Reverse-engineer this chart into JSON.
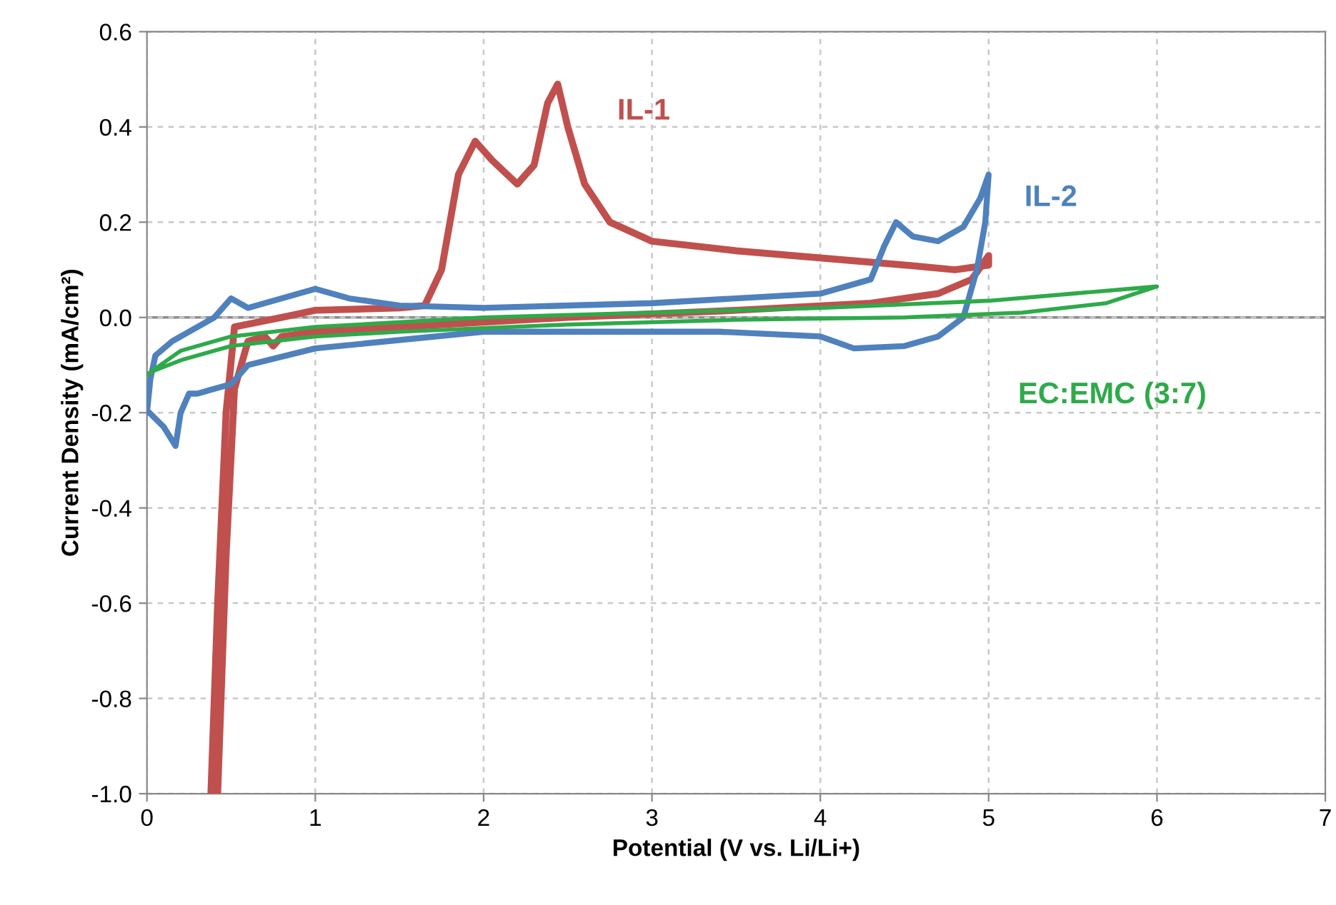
{
  "chart_data": {
    "type": "line",
    "xlabel": "Potential (V vs. Li/Li+)",
    "ylabel": "Current Density (mA/cm²)",
    "xlim": [
      0,
      7
    ],
    "xticks": [
      0,
      1,
      2,
      3,
      4,
      5,
      6,
      7
    ],
    "ylim": [
      -1.0,
      0.6
    ],
    "yticks": [
      {
        "value": -1.0,
        "label": "-1.0"
      },
      {
        "value": -0.8,
        "label": "-0.8"
      },
      {
        "value": -0.6,
        "label": "-0.6"
      },
      {
        "value": -0.4,
        "label": "-0.4"
      },
      {
        "value": -0.2,
        "label": "-0.2"
      },
      {
        "value": 0.0,
        "label": "0.0"
      },
      0.2,
      0.4,
      0.6
    ],
    "grid": true,
    "line_style": "solid",
    "marker": "none",
    "legend": false,
    "ref_lines": [
      {
        "axis": "y",
        "value": 0,
        "color": "#8c8c8c",
        "line_style": "solid"
      }
    ],
    "series": [
      {
        "name": "IL-1",
        "color": "#c0504d",
        "x": [
          0.38,
          0.42,
          0.47,
          0.52,
          0.8,
          1.0,
          1.5,
          1.65,
          1.75,
          1.85,
          1.95,
          2.05,
          2.2,
          2.3,
          2.38,
          2.44,
          2.5,
          2.6,
          2.75,
          3.0,
          3.5,
          4.0,
          4.5,
          4.8,
          5.0,
          5.0,
          4.9,
          4.7,
          4.3,
          3.5,
          2.5,
          1.5,
          1.0,
          0.8,
          0.75,
          0.7,
          0.6,
          0.52,
          0.47,
          0.42
        ],
        "values": [
          -1.0,
          -0.6,
          -0.2,
          -0.02,
          0.0,
          0.015,
          0.02,
          0.025,
          0.1,
          0.3,
          0.37,
          0.33,
          0.28,
          0.32,
          0.45,
          0.49,
          0.4,
          0.28,
          0.2,
          0.16,
          0.14,
          0.125,
          0.11,
          0.1,
          0.11,
          0.13,
          0.08,
          0.05,
          0.03,
          0.015,
          0.0,
          -0.02,
          -0.03,
          -0.04,
          -0.06,
          -0.04,
          -0.05,
          -0.15,
          -0.5,
          -1.0
        ]
      },
      {
        "name": "IL-2",
        "color": "#4f81bd",
        "x": [
          0.0,
          0.02,
          0.05,
          0.15,
          0.3,
          0.4,
          0.5,
          0.6,
          0.7,
          0.85,
          1.0,
          1.2,
          1.5,
          2.0,
          3.0,
          4.0,
          4.3,
          4.38,
          4.45,
          4.55,
          4.7,
          4.85,
          4.95,
          5.0,
          4.98,
          4.93,
          4.85,
          4.7,
          4.5,
          4.2,
          4.0,
          3.4,
          2.0,
          1.0,
          0.6,
          0.5,
          0.4,
          0.3,
          0.25,
          0.2,
          0.17,
          0.1,
          0.0
        ],
        "values": [
          -0.2,
          -0.13,
          -0.08,
          -0.05,
          -0.02,
          0.0,
          0.04,
          0.02,
          0.03,
          0.045,
          0.06,
          0.04,
          0.025,
          0.02,
          0.03,
          0.05,
          0.08,
          0.15,
          0.2,
          0.17,
          0.16,
          0.19,
          0.25,
          0.3,
          0.2,
          0.1,
          0.0,
          -0.04,
          -0.06,
          -0.065,
          -0.04,
          -0.03,
          -0.03,
          -0.065,
          -0.1,
          -0.14,
          -0.15,
          -0.16,
          -0.16,
          -0.2,
          -0.27,
          -0.23,
          -0.195
        ]
      },
      {
        "name": "EC:EMC (3:7)",
        "color": "#2eaa4a",
        "x": [
          0.0,
          0.2,
          0.5,
          1.0,
          2.0,
          3.0,
          4.0,
          5.0,
          5.5,
          6.0,
          5.7,
          5.2,
          4.5,
          3.5,
          2.5,
          1.5,
          1.0,
          0.5,
          0.2,
          0.02
        ],
        "values": [
          -0.12,
          -0.07,
          -0.04,
          -0.02,
          0.0,
          0.01,
          0.02,
          0.035,
          0.05,
          0.065,
          0.03,
          0.01,
          0.0,
          -0.005,
          -0.015,
          -0.03,
          -0.04,
          -0.06,
          -0.09,
          -0.115
        ]
      }
    ]
  }
}
